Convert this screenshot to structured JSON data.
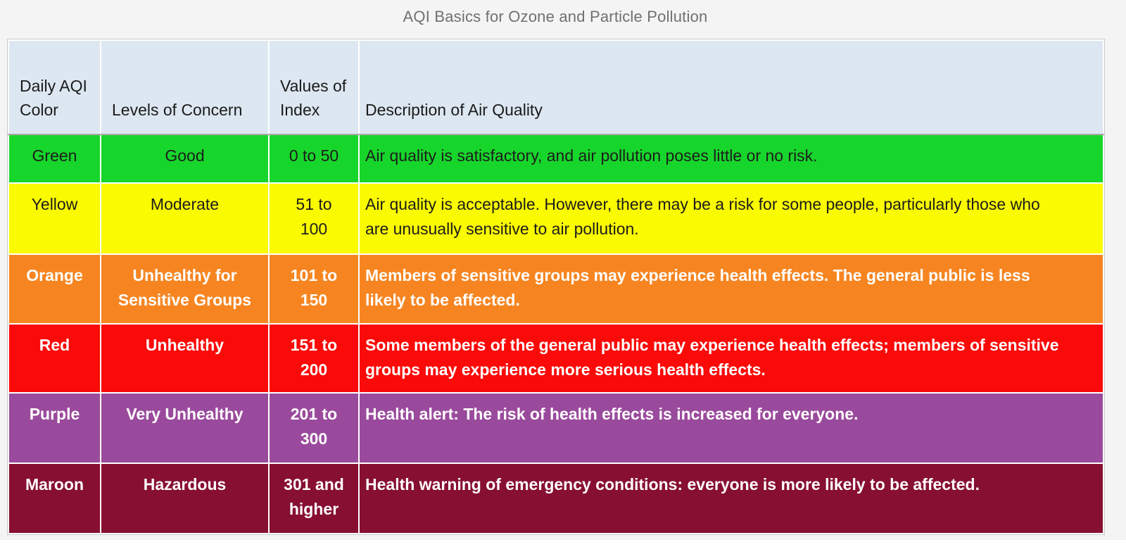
{
  "title": "AQI Basics for Ozone and Particle Pollution",
  "table": {
    "header": {
      "background": "#dce7f1",
      "columns": [
        "Daily AQI Color",
        "Levels of Concern",
        "Values of Index",
        "Description of Air Quality"
      ]
    },
    "rows": [
      {
        "color_name": "Green",
        "level": "Good",
        "values": "0 to 50",
        "description": "Air quality is satisfactory, and air pollution poses little or no risk.",
        "bg": "#17d62b",
        "fg": "#1d1d1d",
        "bold": false
      },
      {
        "color_name": "Yellow",
        "level": "Moderate",
        "values": "51 to 100",
        "description": "Air quality is acceptable. However, there may be a risk for some people, particularly those who are unusually sensitive to air pollution.",
        "bg": "#fafa00",
        "fg": "#1d1d1d",
        "bold": false
      },
      {
        "color_name": "Orange",
        "level": "Unhealthy for Sensitive Groups",
        "values": "101 to 150",
        "description": "Members of sensitive groups may experience health effects. The general public is less likely to be affected.",
        "bg": "#f68521",
        "fg": "#ffffff",
        "bold": true
      },
      {
        "color_name": "Red",
        "level": "Unhealthy",
        "values": "151 to 200",
        "description": "Some members of the general public may experience health effects; members of sensitive groups may experience more serious health effects.",
        "bg": "#fa0a08",
        "fg": "#ffffff",
        "bold": true
      },
      {
        "color_name": "Purple",
        "level": "Very Unhealthy",
        "values": "201 to 300",
        "description": "Health alert: The risk of health effects is increased for everyone.",
        "bg": "#9a4a9c",
        "fg": "#ffffff",
        "bold": true
      },
      {
        "color_name": "Maroon",
        "level": "Hazardous",
        "values": "301 and higher",
        "description": "Health warning of emergency conditions: everyone is more likely to be affected.",
        "bg": "#870f31",
        "fg": "#ffffff",
        "bold": true
      }
    ]
  }
}
